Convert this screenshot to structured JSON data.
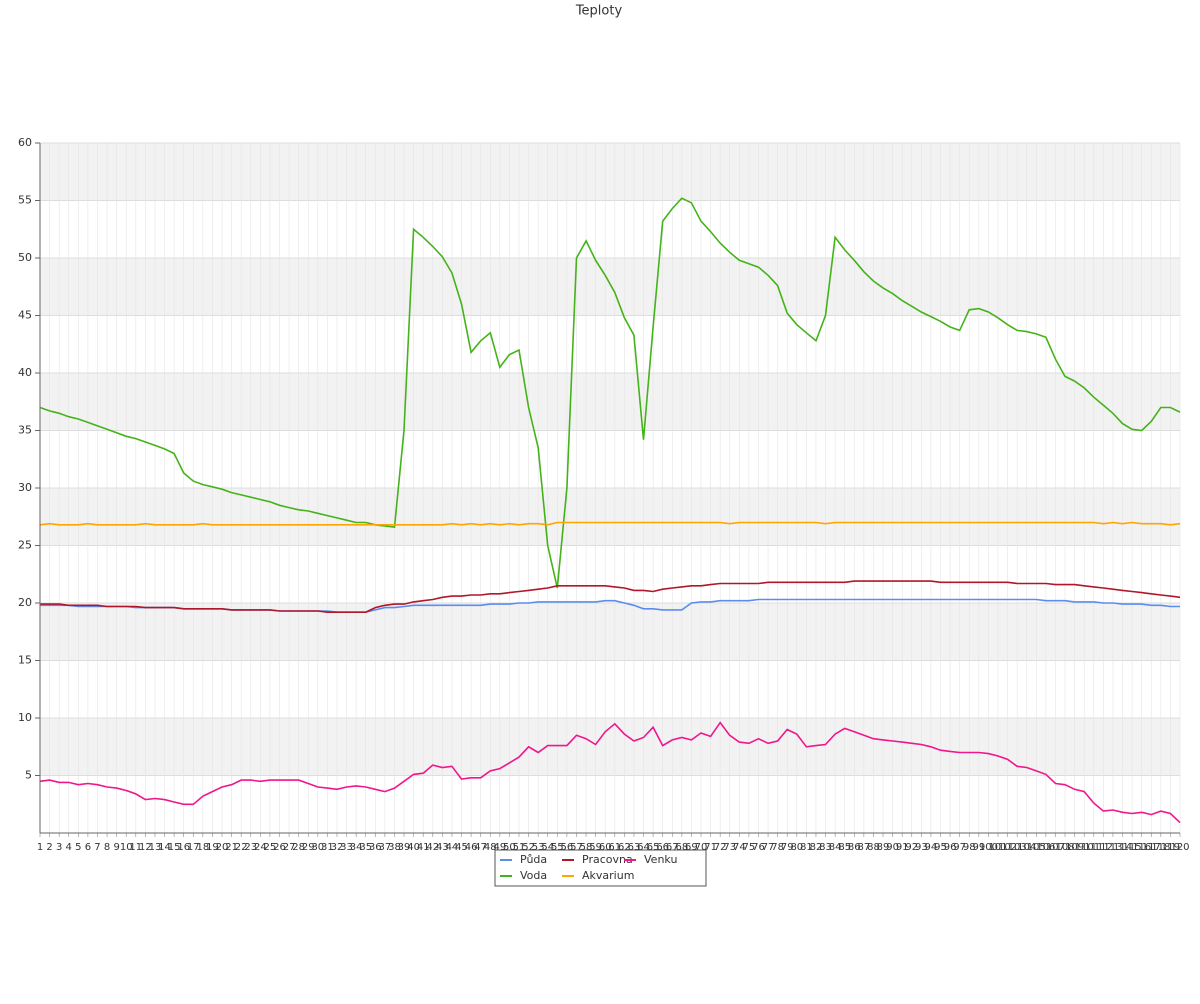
{
  "chart_data": {
    "type": "line",
    "title": "Teploty",
    "categories": [
      1,
      2,
      3,
      4,
      5,
      6,
      7,
      8,
      9,
      10,
      11,
      12,
      13,
      14,
      15,
      16,
      17,
      18,
      19,
      20,
      21,
      22,
      23,
      24,
      25,
      26,
      27,
      28,
      29,
      30,
      31,
      32,
      33,
      34,
      35,
      36,
      37,
      38,
      39,
      40,
      41,
      42,
      43,
      44,
      45,
      46,
      47,
      48,
      49,
      50,
      51,
      52,
      53,
      54,
      55,
      56,
      57,
      58,
      59,
      60,
      61,
      62,
      63,
      64,
      65,
      66,
      67,
      68,
      69,
      70,
      71,
      72,
      73,
      74,
      75,
      76,
      77,
      78,
      79,
      80,
      81,
      82,
      83,
      84,
      85,
      86,
      87,
      88,
      89,
      90,
      91,
      92,
      93,
      94,
      95,
      96,
      97,
      98,
      99,
      100,
      101,
      102,
      103,
      104,
      105,
      106,
      107,
      108,
      109,
      110,
      111,
      112,
      113,
      114,
      115,
      116,
      117,
      118,
      119,
      120
    ],
    "ylim": [
      0,
      60
    ],
    "yticks": [
      5,
      10,
      15,
      20,
      25,
      30,
      35,
      40,
      45,
      50,
      55,
      60
    ],
    "grid": true,
    "legend": "bottom",
    "series": [
      {
        "name": "Půda",
        "color": "#5b8def",
        "values": [
          19.8,
          19.8,
          19.8,
          19.8,
          19.7,
          19.7,
          19.7,
          19.7,
          19.7,
          19.7,
          19.6,
          19.6,
          19.6,
          19.6,
          19.6,
          19.5,
          19.5,
          19.5,
          19.5,
          19.5,
          19.4,
          19.4,
          19.4,
          19.4,
          19.4,
          19.3,
          19.3,
          19.3,
          19.3,
          19.3,
          19.3,
          19.2,
          19.2,
          19.2,
          19.2,
          19.4,
          19.6,
          19.6,
          19.7,
          19.8,
          19.8,
          19.8,
          19.8,
          19.8,
          19.8,
          19.8,
          19.8,
          19.9,
          19.9,
          19.9,
          20,
          20,
          20.1,
          20.1,
          20.1,
          20.1,
          20.1,
          20.1,
          20.1,
          20.2,
          20.2,
          20,
          19.8,
          19.5,
          19.5,
          19.4,
          19.4,
          19.4,
          20,
          20.1,
          20.1,
          20.2,
          20.2,
          20.2,
          20.2,
          20.3,
          20.3,
          20.3,
          20.3,
          20.3,
          20.3,
          20.3,
          20.3,
          20.3,
          20.3,
          20.3,
          20.3,
          20.3,
          20.3,
          20.3,
          20.3,
          20.3,
          20.3,
          20.3,
          20.3,
          20.3,
          20.3,
          20.3,
          20.3,
          20.3,
          20.3,
          20.3,
          20.3,
          20.3,
          20.3,
          20.2,
          20.2,
          20.2,
          20.1,
          20.1,
          20.1,
          20,
          20,
          19.9,
          19.9,
          19.9,
          19.8,
          19.8,
          19.7,
          19.7
        ]
      },
      {
        "name": "Voda",
        "color": "#44b31a",
        "values": [
          37,
          36.7,
          36.5,
          36.2,
          36,
          35.7,
          35.4,
          35.1,
          34.8,
          34.5,
          34.3,
          34,
          33.7,
          33.4,
          33,
          31.3,
          30.6,
          30.3,
          30.1,
          29.9,
          29.6,
          29.4,
          29.2,
          29,
          28.8,
          28.5,
          28.3,
          28.1,
          28,
          27.8,
          27.6,
          27.4,
          27.2,
          27,
          27,
          26.8,
          26.7,
          26.6,
          35,
          52.5,
          51.8,
          51,
          50.1,
          48.7,
          46,
          41.8,
          42.8,
          43.5,
          40.5,
          41.6,
          42,
          37,
          33.5,
          25,
          21.3,
          30,
          50,
          51.5,
          49.8,
          48.5,
          47,
          44.8,
          43.3,
          34.2,
          44,
          53.2,
          54.3,
          55.2,
          54.8,
          53.2,
          52.3,
          51.3,
          50.5,
          49.8,
          49.5,
          49.2,
          48.5,
          47.6,
          45.2,
          44.2,
          43.5,
          42.8,
          45,
          51.8,
          50.7,
          49.8,
          48.8,
          48,
          47.4,
          46.9,
          46.3,
          45.8,
          45.3,
          44.9,
          44.5,
          44,
          43.7,
          45.5,
          45.6,
          45.3,
          44.8,
          44.2,
          43.7,
          43.6,
          43.4,
          43.1,
          41.2,
          39.7,
          39.3,
          38.7,
          37.9,
          37.2,
          36.5,
          35.6,
          35.1,
          35,
          35.8,
          37,
          37,
          36.6
        ]
      },
      {
        "name": "Pracovna",
        "color": "#b0172a",
        "values": [
          19.9,
          19.9,
          19.9,
          19.8,
          19.8,
          19.8,
          19.8,
          19.7,
          19.7,
          19.7,
          19.7,
          19.6,
          19.6,
          19.6,
          19.6,
          19.5,
          19.5,
          19.5,
          19.5,
          19.5,
          19.4,
          19.4,
          19.4,
          19.4,
          19.4,
          19.3,
          19.3,
          19.3,
          19.3,
          19.3,
          19.2,
          19.2,
          19.2,
          19.2,
          19.2,
          19.6,
          19.8,
          19.9,
          19.9,
          20.1,
          20.2,
          20.3,
          20.5,
          20.6,
          20.6,
          20.7,
          20.7,
          20.8,
          20.8,
          20.9,
          21,
          21.1,
          21.2,
          21.3,
          21.5,
          21.5,
          21.5,
          21.5,
          21.5,
          21.5,
          21.4,
          21.3,
          21.1,
          21.1,
          21,
          21.2,
          21.3,
          21.4,
          21.5,
          21.5,
          21.6,
          21.7,
          21.7,
          21.7,
          21.7,
          21.7,
          21.8,
          21.8,
          21.8,
          21.8,
          21.8,
          21.8,
          21.8,
          21.8,
          21.8,
          21.9,
          21.9,
          21.9,
          21.9,
          21.9,
          21.9,
          21.9,
          21.9,
          21.9,
          21.8,
          21.8,
          21.8,
          21.8,
          21.8,
          21.8,
          21.8,
          21.8,
          21.7,
          21.7,
          21.7,
          21.7,
          21.6,
          21.6,
          21.6,
          21.5,
          21.4,
          21.3,
          21.2,
          21.1,
          21,
          20.9,
          20.8,
          20.7,
          20.6,
          20.5
        ]
      },
      {
        "name": "Akvarium",
        "color": "#ffa500",
        "values": [
          26.8,
          26.9,
          26.8,
          26.8,
          26.8,
          26.9,
          26.8,
          26.8,
          26.8,
          26.8,
          26.8,
          26.9,
          26.8,
          26.8,
          26.8,
          26.8,
          26.8,
          26.9,
          26.8,
          26.8,
          26.8,
          26.8,
          26.8,
          26.8,
          26.8,
          26.8,
          26.8,
          26.8,
          26.8,
          26.8,
          26.8,
          26.8,
          26.8,
          26.8,
          26.8,
          26.8,
          26.8,
          26.8,
          26.8,
          26.8,
          26.8,
          26.8,
          26.8,
          26.9,
          26.8,
          26.9,
          26.8,
          26.9,
          26.8,
          26.9,
          26.8,
          26.9,
          26.9,
          26.8,
          27,
          27,
          27,
          27,
          27,
          27,
          27,
          27,
          27,
          27,
          27,
          27,
          27,
          27,
          27,
          27,
          27,
          27,
          26.9,
          27,
          27,
          27,
          27,
          27,
          27,
          27,
          27,
          27,
          26.9,
          27,
          27,
          27,
          27,
          27,
          27,
          27,
          27,
          27,
          27,
          27,
          27,
          27,
          27,
          27,
          27,
          27,
          27,
          27,
          27,
          27,
          27,
          27,
          27,
          27,
          27,
          27,
          27,
          26.9,
          27,
          26.9,
          27,
          26.9,
          26.9,
          26.9,
          26.8,
          26.9
        ]
      },
      {
        "name": "Venku",
        "color": "#f0168c",
        "values": [
          4.5,
          4.6,
          4.4,
          4.4,
          4.2,
          4.3,
          4.2,
          4,
          3.9,
          3.7,
          3.4,
          2.9,
          3,
          2.9,
          2.7,
          2.5,
          2.5,
          3.2,
          3.6,
          4,
          4.2,
          4.6,
          4.6,
          4.5,
          4.6,
          4.6,
          4.6,
          4.6,
          4.3,
          4,
          3.9,
          3.8,
          4,
          4.1,
          4,
          3.8,
          3.6,
          3.9,
          4.5,
          5.1,
          5.2,
          5.9,
          5.7,
          5.8,
          4.7,
          4.8,
          4.8,
          5.4,
          5.6,
          6.1,
          6.6,
          7.5,
          7,
          7.6,
          7.6,
          7.6,
          8.5,
          8.2,
          7.7,
          8.8,
          9.5,
          8.6,
          8,
          8.3,
          9.2,
          7.6,
          8.1,
          8.3,
          8.1,
          8.7,
          8.4,
          9.6,
          8.5,
          7.9,
          7.8,
          8.2,
          7.8,
          8,
          9,
          8.6,
          7.5,
          7.6,
          7.7,
          8.6,
          9.1,
          8.8,
          8.5,
          8.2,
          8.1,
          8,
          7.9,
          7.8,
          7.7,
          7.5,
          7.2,
          7.1,
          7,
          7,
          7,
          6.9,
          6.7,
          6.4,
          5.8,
          5.7,
          5.4,
          5.1,
          4.3,
          4.2,
          3.8,
          3.6,
          2.6,
          1.9,
          2,
          1.8,
          1.7,
          1.8,
          1.6,
          1.9,
          1.7,
          0.9
        ]
      }
    ]
  }
}
